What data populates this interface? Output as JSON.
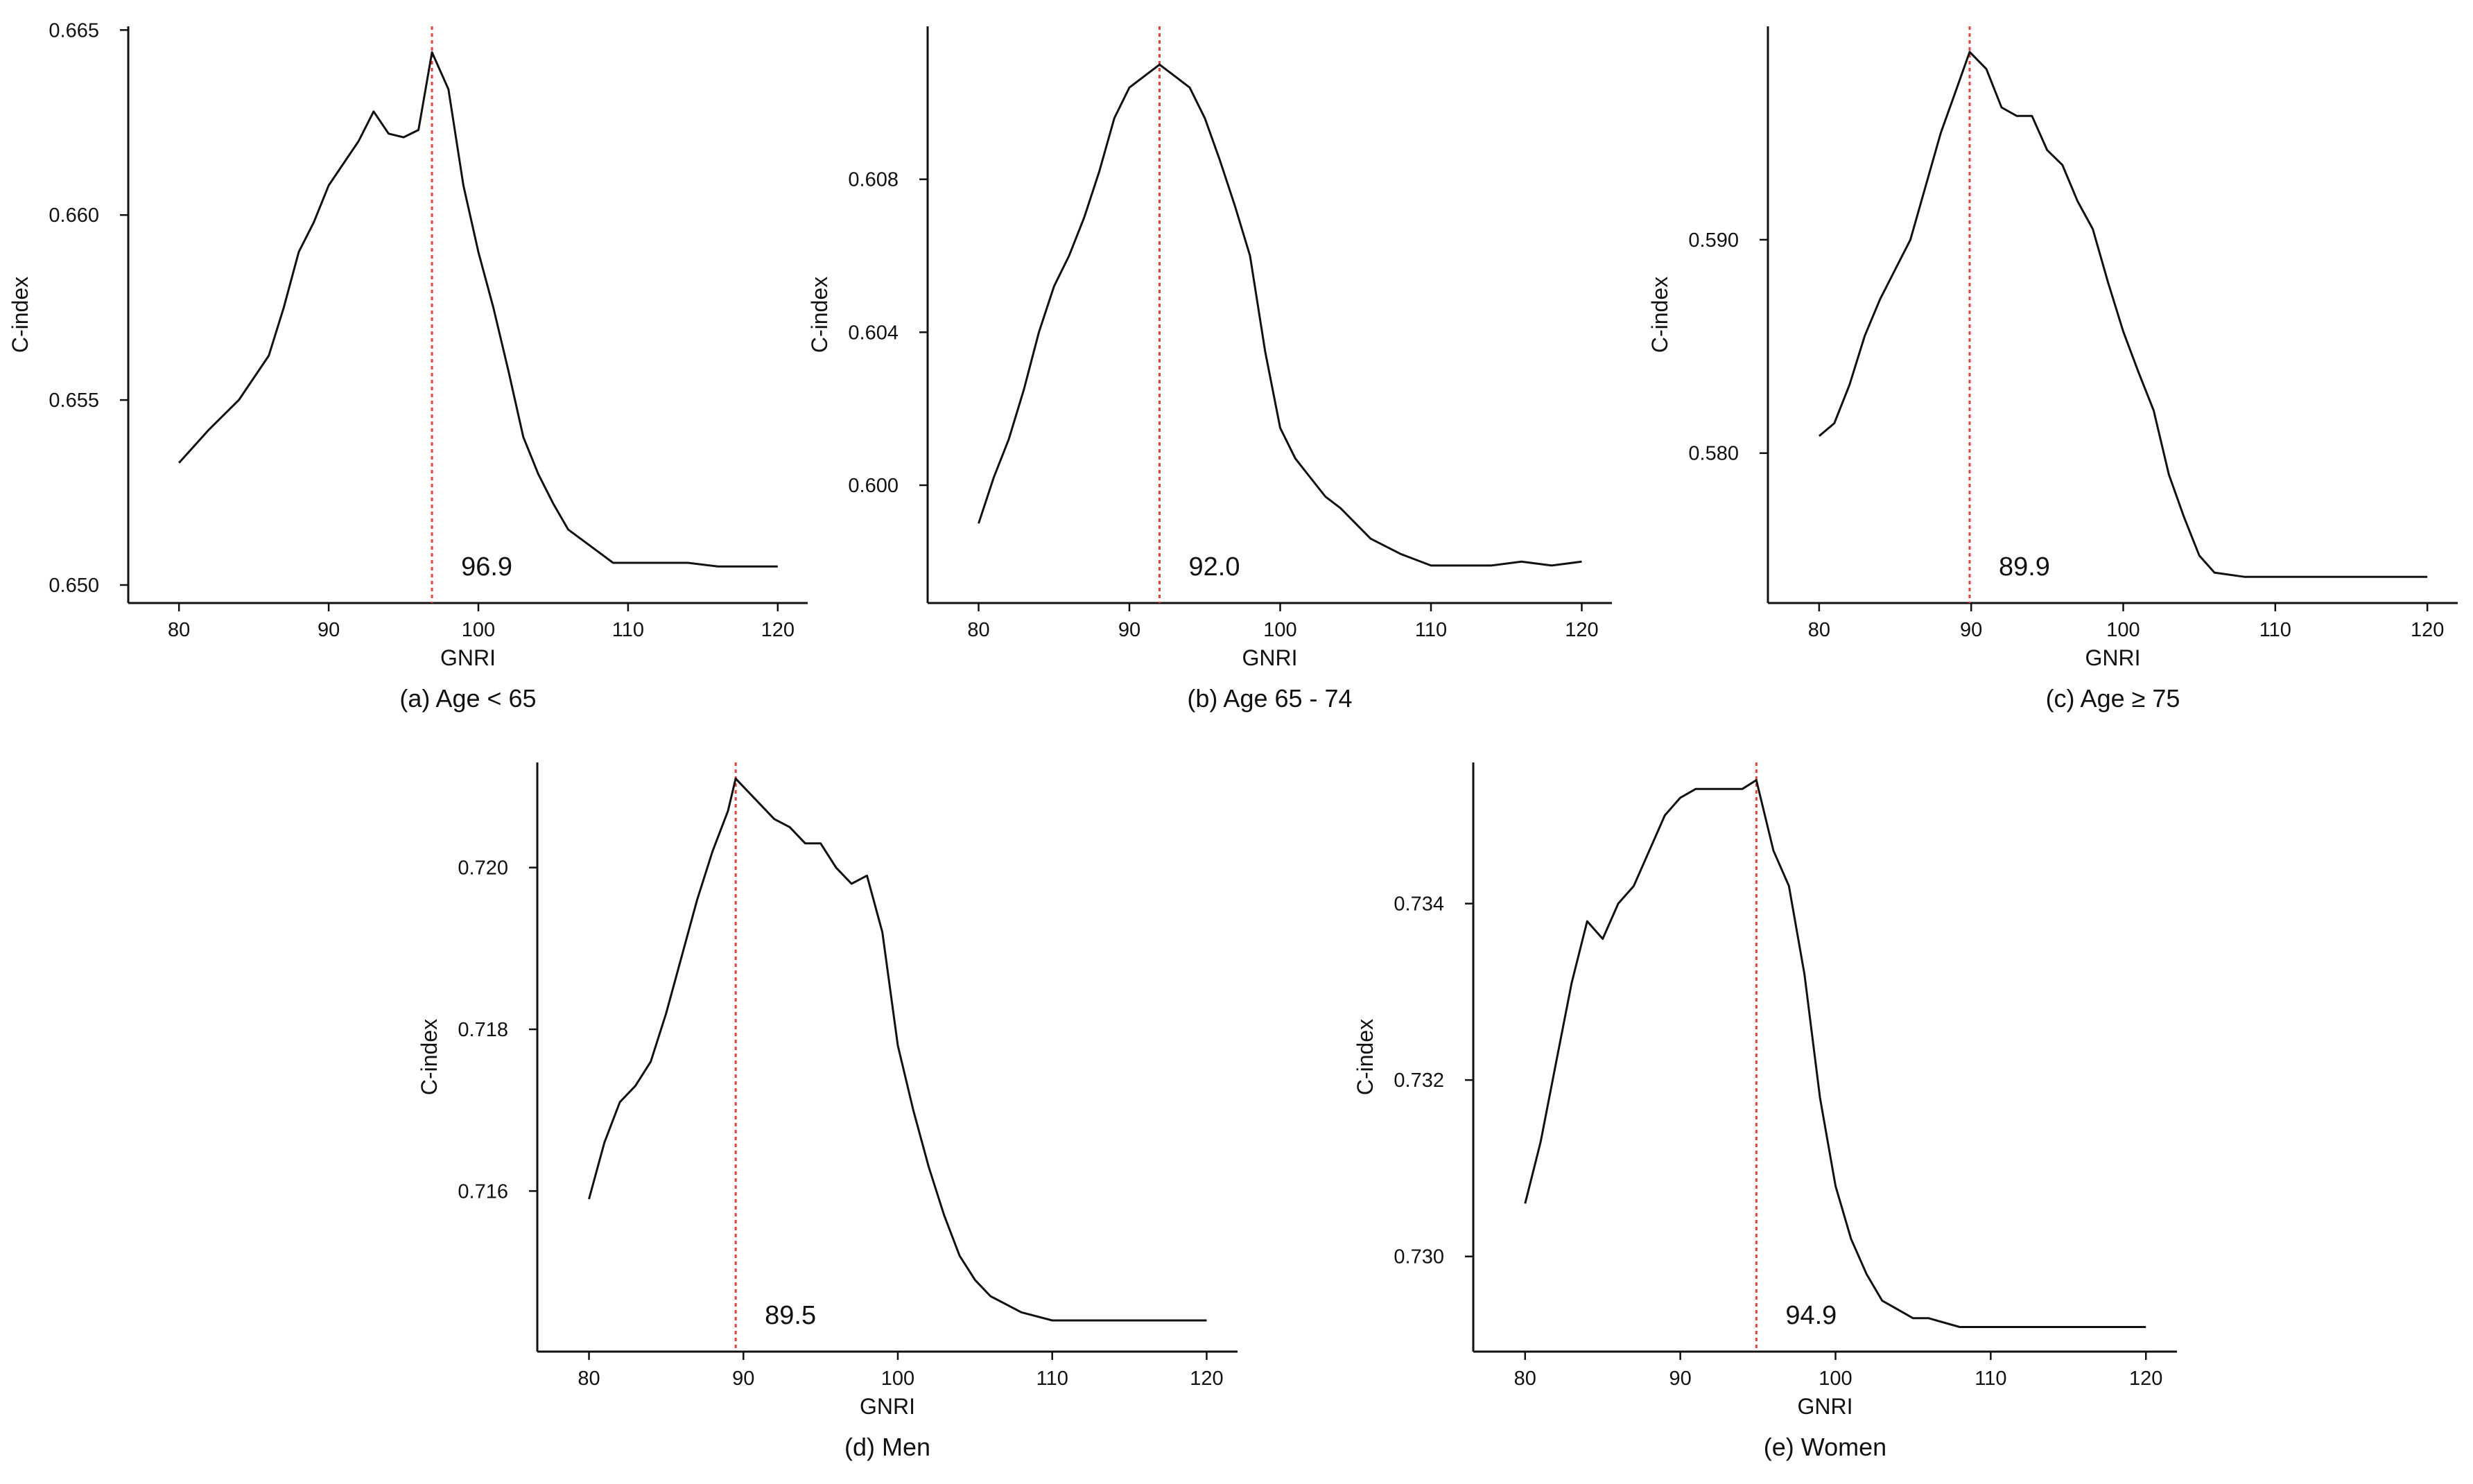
{
  "figure": {
    "colors": {
      "curve": "#111111",
      "cutoff": "#e0453a"
    }
  },
  "chart_data": [
    {
      "type": "line",
      "caption": "(a) Age < 65",
      "xlabel": "GNRI",
      "ylabel": "C-index",
      "xlim": [
        78,
        122
      ],
      "ylim": [
        0.6497,
        0.6651
      ],
      "xticks": [
        80,
        90,
        100,
        110,
        120
      ],
      "yticks": [
        0.65,
        0.655,
        0.66,
        0.665
      ],
      "xtick_labels": [
        "80",
        "90",
        "100",
        "110",
        "120"
      ],
      "ytick_labels": [
        "0.650",
        "0.655",
        "0.660",
        "0.665"
      ],
      "cutoff": 96.9,
      "annotation": "96.9",
      "x": [
        80,
        82,
        84,
        86,
        87,
        88,
        89,
        90,
        91,
        92,
        93,
        94,
        95,
        96,
        96.9,
        98,
        99,
        100,
        101,
        102,
        103,
        104,
        105,
        106,
        107,
        108,
        109,
        110,
        112,
        114,
        116,
        118,
        120
      ],
      "y": [
        0.6533,
        0.6542,
        0.655,
        0.6562,
        0.6575,
        0.659,
        0.6598,
        0.6608,
        0.6614,
        0.662,
        0.6628,
        0.6622,
        0.6621,
        0.6623,
        0.6644,
        0.6634,
        0.6608,
        0.659,
        0.6575,
        0.6558,
        0.654,
        0.653,
        0.6522,
        0.6515,
        0.6512,
        0.6509,
        0.6506,
        0.6506,
        0.6506,
        0.6506,
        0.6505,
        0.6505,
        0.6505
      ]
    },
    {
      "type": "line",
      "caption": "(b) Age 65 - 74",
      "xlabel": "GNRI",
      "ylabel": "C-index",
      "xlim": [
        78,
        122
      ],
      "ylim": [
        0.5971,
        0.612
      ],
      "xticks": [
        80,
        90,
        100,
        110,
        120
      ],
      "yticks": [
        0.6,
        0.604,
        0.608
      ],
      "xtick_labels": [
        "80",
        "90",
        "100",
        "110",
        "120"
      ],
      "ytick_labels": [
        "0.600",
        "0.604",
        "0.608"
      ],
      "cutoff": 92.0,
      "annotation": "92.0",
      "x": [
        80,
        81,
        82,
        83,
        84,
        85,
        86,
        87,
        88,
        89,
        90,
        91,
        92,
        93,
        94,
        95,
        96,
        97,
        98,
        99,
        100,
        101,
        102,
        103,
        104,
        105,
        106,
        108,
        110,
        112,
        114,
        116,
        118,
        120
      ],
      "y": [
        0.599,
        0.6002,
        0.6012,
        0.6025,
        0.604,
        0.6052,
        0.606,
        0.607,
        0.6082,
        0.6096,
        0.6104,
        0.6107,
        0.611,
        0.6107,
        0.6104,
        0.6096,
        0.6085,
        0.6073,
        0.606,
        0.6035,
        0.6015,
        0.6007,
        0.6002,
        0.5997,
        0.5994,
        0.599,
        0.5986,
        0.5982,
        0.5979,
        0.5979,
        0.5979,
        0.598,
        0.5979,
        0.598
      ]
    },
    {
      "type": "line",
      "caption": "(c) Age ≥ 75",
      "xlabel": "GNRI",
      "ylabel": "C-index",
      "xlim": [
        78,
        122
      ],
      "ylim": [
        0.5733,
        0.6
      ],
      "xticks": [
        80,
        90,
        100,
        110,
        120
      ],
      "yticks": [
        0.58,
        0.59
      ],
      "xtick_labels": [
        "80",
        "90",
        "100",
        "110",
        "120"
      ],
      "ytick_labels": [
        "0.580",
        "0.590"
      ],
      "cutoff": 89.9,
      "annotation": "89.9",
      "x": [
        80,
        81,
        82,
        83,
        84,
        85,
        86,
        87,
        88,
        89,
        89.9,
        91,
        92,
        93,
        94,
        95,
        96,
        97,
        98,
        99,
        100,
        101,
        102,
        103,
        104,
        105,
        106,
        108,
        110,
        112,
        114,
        116,
        118,
        120
      ],
      "y": [
        0.5808,
        0.5814,
        0.5832,
        0.5855,
        0.5872,
        0.5886,
        0.59,
        0.5925,
        0.595,
        0.597,
        0.5988,
        0.598,
        0.5962,
        0.5958,
        0.5958,
        0.5942,
        0.5935,
        0.5918,
        0.5905,
        0.588,
        0.5857,
        0.5838,
        0.582,
        0.579,
        0.577,
        0.5752,
        0.5744,
        0.5742,
        0.5742,
        0.5742,
        0.5742,
        0.5742,
        0.5742,
        0.5742
      ]
    },
    {
      "type": "line",
      "caption": "(d) Men",
      "xlabel": "GNRI",
      "ylabel": "C-index",
      "xlim": [
        78,
        122
      ],
      "ylim": [
        0.7141,
        0.7213
      ],
      "xticks": [
        80,
        90,
        100,
        110,
        120
      ],
      "yticks": [
        0.716,
        0.718,
        0.72
      ],
      "xtick_labels": [
        "80",
        "90",
        "100",
        "110",
        "120"
      ],
      "ytick_labels": [
        "0.716",
        "0.718",
        "0.720"
      ],
      "cutoff": 89.5,
      "annotation": "89.5",
      "x": [
        80,
        81,
        82,
        83,
        84,
        85,
        86,
        87,
        88,
        89,
        89.5,
        91,
        92,
        93,
        94,
        95,
        96,
        97,
        98,
        99,
        100,
        101,
        102,
        103,
        104,
        105,
        106,
        108,
        110,
        112,
        114,
        116,
        118,
        120
      ],
      "y": [
        0.7159,
        0.7166,
        0.7171,
        0.7173,
        0.7176,
        0.7182,
        0.7189,
        0.7196,
        0.7202,
        0.7207,
        0.7211,
        0.7208,
        0.7206,
        0.7205,
        0.7203,
        0.7203,
        0.72,
        0.7198,
        0.7199,
        0.7192,
        0.7178,
        0.717,
        0.7163,
        0.7157,
        0.7152,
        0.7149,
        0.7147,
        0.7145,
        0.7144,
        0.7144,
        0.7144,
        0.7144,
        0.7144,
        0.7144
      ]
    },
    {
      "type": "line",
      "caption": "(e) Women",
      "xlabel": "GNRI",
      "ylabel": "C-index",
      "xlim": [
        78,
        122
      ],
      "ylim": [
        0.729,
        0.7356
      ],
      "xticks": [
        80,
        90,
        100,
        110,
        120
      ],
      "yticks": [
        0.73,
        0.732,
        0.734
      ],
      "xtick_labels": [
        "80",
        "90",
        "100",
        "110",
        "120"
      ],
      "ytick_labels": [
        "0.730",
        "0.732",
        "0.734"
      ],
      "cutoff": 94.9,
      "annotation": "94.9",
      "x": [
        80,
        81,
        82,
        83,
        84,
        85,
        86,
        87,
        88,
        89,
        90,
        91,
        92,
        93,
        94,
        94.9,
        96,
        97,
        98,
        99,
        100,
        101,
        102,
        103,
        104,
        105,
        106,
        108,
        110,
        112,
        114,
        116,
        118,
        120
      ],
      "y": [
        0.7306,
        0.7313,
        0.7322,
        0.7331,
        0.7338,
        0.7336,
        0.734,
        0.7342,
        0.7346,
        0.735,
        0.7352,
        0.7353,
        0.7353,
        0.7353,
        0.7353,
        0.7354,
        0.7346,
        0.7342,
        0.7332,
        0.7318,
        0.7308,
        0.7302,
        0.7298,
        0.7295,
        0.7294,
        0.7293,
        0.7293,
        0.7292,
        0.7292,
        0.7292,
        0.7292,
        0.7292,
        0.7292,
        0.7292
      ]
    }
  ]
}
